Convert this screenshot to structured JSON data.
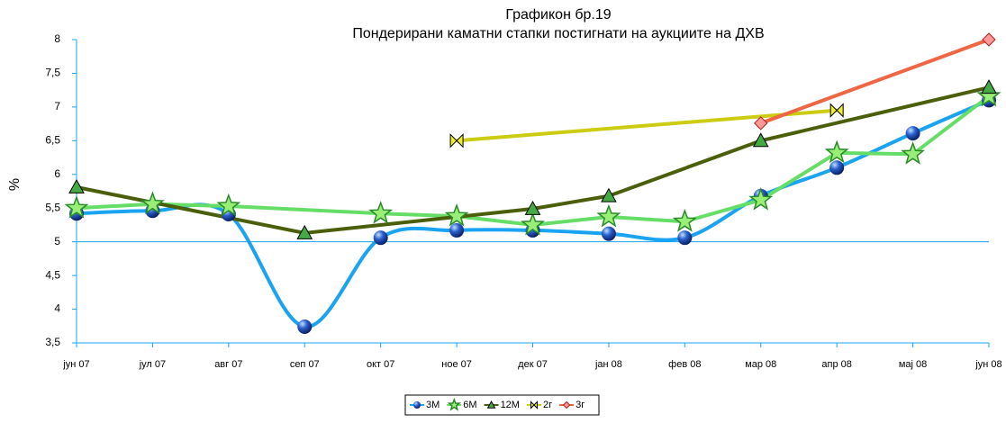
{
  "chart_data": {
    "type": "line",
    "title": "Графикон бр.19",
    "subtitle": "Пондерирани каматни стапки постигнати на аукциите на ДХВ",
    "y_label": "%",
    "categories": [
      "јун 07",
      "јул 07",
      "авг 07",
      "сеп 07",
      "окт 07",
      "ное 07",
      "дек 07",
      "јан 08",
      "фев 08",
      "мар 08",
      "апр 08",
      "мај 08",
      "јун 08"
    ],
    "ylim": [
      3.5,
      8
    ],
    "yticks": [
      {
        "value": 3.5,
        "label": "3,5"
      },
      4,
      {
        "value": 4.5,
        "label": "4,5"
      },
      5,
      {
        "value": 5.5,
        "label": "5,5"
      },
      6,
      {
        "value": 6.5,
        "label": "6,5"
      },
      7,
      {
        "value": 7.5,
        "label": "7,5"
      },
      8
    ],
    "reference_line": 5,
    "connect_gaps": true,
    "legend": "bottom",
    "series": [
      {
        "name": "3M",
        "color": "#1aa3f0",
        "marker": "sphere",
        "smooth": true,
        "values": [
          5.42,
          5.46,
          5.41,
          3.74,
          5.06,
          5.17,
          5.17,
          5.12,
          5.06,
          5.68,
          6.1,
          6.61,
          7.1
        ]
      },
      {
        "name": "6M",
        "color": "#66dd66",
        "marker": "star",
        "smooth": false,
        "values": [
          5.5,
          5.56,
          5.53,
          null,
          5.42,
          5.38,
          5.25,
          5.37,
          5.3,
          5.62,
          6.32,
          6.3,
          7.16
        ]
      },
      {
        "name": "12M",
        "color": "#4b5e0a",
        "marker": "triangle",
        "smooth": false,
        "values": [
          5.81,
          null,
          null,
          5.13,
          null,
          null,
          5.49,
          5.68,
          null,
          6.5,
          null,
          null,
          7.29
        ]
      },
      {
        "name": "2г",
        "color": "#cccc11",
        "marker": "bowtie",
        "smooth": false,
        "values": [
          null,
          null,
          null,
          null,
          null,
          6.5,
          null,
          null,
          null,
          null,
          6.95,
          null,
          null
        ]
      },
      {
        "name": "3г",
        "color": "#ee6644",
        "marker": "diamond",
        "smooth": false,
        "values": [
          null,
          null,
          null,
          null,
          null,
          null,
          null,
          null,
          null,
          6.76,
          null,
          null,
          8
        ]
      }
    ]
  }
}
